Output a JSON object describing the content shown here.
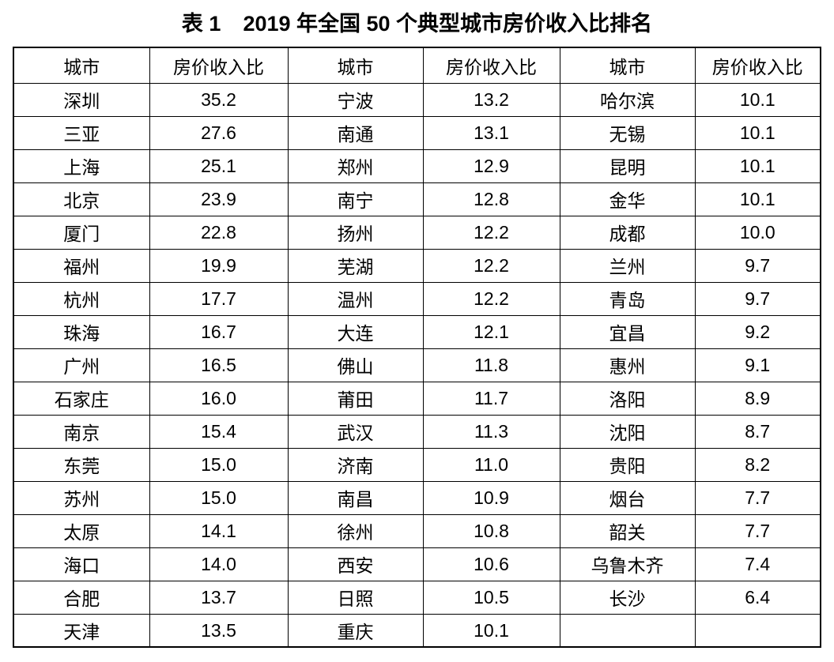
{
  "title": {
    "label": "表 1",
    "text": "2019 年全国 50 个典型城市房价收入比排名"
  },
  "table": {
    "column_headers": [
      "城市",
      "房价收入比",
      "城市",
      "房价收入比",
      "城市",
      "房价收入比"
    ],
    "rows": [
      [
        "深圳",
        "35.2",
        "宁波",
        "13.2",
        "哈尔滨",
        "10.1"
      ],
      [
        "三亚",
        "27.6",
        "南通",
        "13.1",
        "无锡",
        "10.1"
      ],
      [
        "上海",
        "25.1",
        "郑州",
        "12.9",
        "昆明",
        "10.1"
      ],
      [
        "北京",
        "23.9",
        "南宁",
        "12.8",
        "金华",
        "10.1"
      ],
      [
        "厦门",
        "22.8",
        "扬州",
        "12.2",
        "成都",
        "10.0"
      ],
      [
        "福州",
        "19.9",
        "芜湖",
        "12.2",
        "兰州",
        "9.7"
      ],
      [
        "杭州",
        "17.7",
        "温州",
        "12.2",
        "青岛",
        "9.7"
      ],
      [
        "珠海",
        "16.7",
        "大连",
        "12.1",
        "宜昌",
        "9.2"
      ],
      [
        "广州",
        "16.5",
        "佛山",
        "11.8",
        "惠州",
        "9.1"
      ],
      [
        "石家庄",
        "16.0",
        "莆田",
        "11.7",
        "洛阳",
        "8.9"
      ],
      [
        "南京",
        "15.4",
        "武汉",
        "11.3",
        "沈阳",
        "8.7"
      ],
      [
        "东莞",
        "15.0",
        "济南",
        "11.0",
        "贵阳",
        "8.2"
      ],
      [
        "苏州",
        "15.0",
        "南昌",
        "10.9",
        "烟台",
        "7.7"
      ],
      [
        "太原",
        "14.1",
        "徐州",
        "10.8",
        "韶关",
        "7.7"
      ],
      [
        "海口",
        "14.0",
        "西安",
        "10.6",
        "乌鲁木齐",
        "7.4"
      ],
      [
        "合肥",
        "13.7",
        "日照",
        "10.5",
        "长沙",
        "6.4"
      ],
      [
        "天津",
        "13.5",
        "重庆",
        "10.1",
        "",
        ""
      ]
    ]
  },
  "colors": {
    "border": "#000000",
    "text": "#000000",
    "background": "#ffffff"
  },
  "chart_data": {
    "type": "table",
    "title": "表 1　2019 年全国 50 个典型城市房价收入比排名",
    "columns": [
      "城市",
      "房价收入比"
    ],
    "rows": [
      [
        "深圳",
        35.2
      ],
      [
        "三亚",
        27.6
      ],
      [
        "上海",
        25.1
      ],
      [
        "北京",
        23.9
      ],
      [
        "厦门",
        22.8
      ],
      [
        "福州",
        19.9
      ],
      [
        "杭州",
        17.7
      ],
      [
        "珠海",
        16.7
      ],
      [
        "广州",
        16.5
      ],
      [
        "石家庄",
        16.0
      ],
      [
        "南京",
        15.4
      ],
      [
        "东莞",
        15.0
      ],
      [
        "苏州",
        15.0
      ],
      [
        "太原",
        14.1
      ],
      [
        "海口",
        14.0
      ],
      [
        "合肥",
        13.7
      ],
      [
        "天津",
        13.5
      ],
      [
        "宁波",
        13.2
      ],
      [
        "南通",
        13.1
      ],
      [
        "郑州",
        12.9
      ],
      [
        "南宁",
        12.8
      ],
      [
        "扬州",
        12.2
      ],
      [
        "芜湖",
        12.2
      ],
      [
        "温州",
        12.2
      ],
      [
        "大连",
        12.1
      ],
      [
        "佛山",
        11.8
      ],
      [
        "莆田",
        11.7
      ],
      [
        "武汉",
        11.3
      ],
      [
        "济南",
        11.0
      ],
      [
        "南昌",
        10.9
      ],
      [
        "徐州",
        10.8
      ],
      [
        "西安",
        10.6
      ],
      [
        "日照",
        10.5
      ],
      [
        "重庆",
        10.1
      ],
      [
        "哈尔滨",
        10.1
      ],
      [
        "无锡",
        10.1
      ],
      [
        "昆明",
        10.1
      ],
      [
        "金华",
        10.1
      ],
      [
        "成都",
        10.0
      ],
      [
        "兰州",
        9.7
      ],
      [
        "青岛",
        9.7
      ],
      [
        "宜昌",
        9.2
      ],
      [
        "惠州",
        9.1
      ],
      [
        "洛阳",
        8.9
      ],
      [
        "沈阳",
        8.7
      ],
      [
        "贵阳",
        8.2
      ],
      [
        "烟台",
        7.7
      ],
      [
        "韶关",
        7.7
      ],
      [
        "乌鲁木齐",
        7.4
      ],
      [
        "长沙",
        6.4
      ]
    ]
  }
}
